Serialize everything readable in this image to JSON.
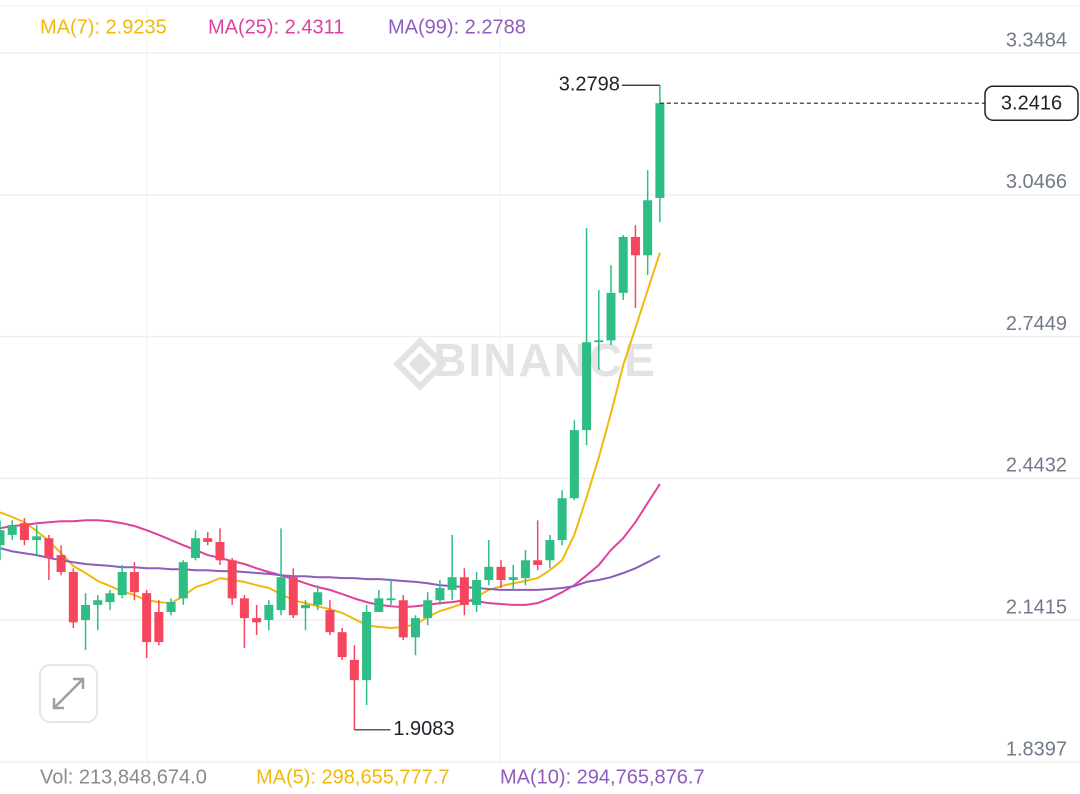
{
  "chart_data": {
    "type": "candlestick",
    "up_color": "#2ebd85",
    "down_color": "#f6465d",
    "ylim": [
      1.83,
      3.46
    ],
    "yticks": [
      3.3484,
      3.0466,
      2.7449,
      2.4432,
      2.1415,
      1.8397
    ],
    "grid": true,
    "watermark": "BINANCE",
    "candles": {
      "open": [
        2.301,
        2.323,
        2.348,
        2.312,
        2.316,
        2.28,
        2.244,
        2.142,
        2.174,
        2.18,
        2.195,
        2.244,
        2.199,
        2.159,
        2.159,
        2.188,
        2.274,
        2.316,
        2.308,
        2.269,
        2.188,
        2.146,
        2.142,
        2.163,
        2.233,
        2.167,
        2.174,
        2.163,
        2.116,
        2.057,
        2.014,
        2.159,
        2.184,
        2.184,
        2.105,
        2.146,
        2.184,
        2.206,
        2.233,
        2.174,
        2.227,
        2.255,
        2.227,
        2.231,
        2.269,
        2.269,
        2.312,
        2.401,
        2.546,
        2.733,
        2.737,
        2.838,
        2.957,
        2.918,
        3.04
      ],
      "high": [
        2.354,
        2.354,
        2.359,
        2.344,
        2.323,
        2.301,
        2.252,
        2.199,
        2.195,
        2.206,
        2.259,
        2.265,
        2.206,
        2.184,
        2.188,
        2.269,
        2.333,
        2.329,
        2.337,
        2.274,
        2.195,
        2.174,
        2.184,
        2.337,
        2.252,
        2.184,
        2.216,
        2.184,
        2.125,
        2.088,
        2.174,
        2.206,
        2.227,
        2.195,
        2.152,
        2.201,
        2.227,
        2.323,
        2.252,
        2.244,
        2.312,
        2.269,
        2.259,
        2.291,
        2.354,
        2.323,
        2.418,
        2.567,
        2.976,
        2.844,
        2.897,
        2.961,
        2.982,
        3.099,
        3.2798
      ],
      "low": [
        2.269,
        2.312,
        2.301,
        2.28,
        2.227,
        2.237,
        2.125,
        2.078,
        2.12,
        2.163,
        2.188,
        2.184,
        2.061,
        2.088,
        2.152,
        2.174,
        2.269,
        2.301,
        2.259,
        2.174,
        2.082,
        2.11,
        2.12,
        2.152,
        2.146,
        2.12,
        2.163,
        2.11,
        2.057,
        1.9083,
        1.961,
        2.159,
        2.174,
        2.099,
        2.067,
        2.131,
        2.174,
        2.184,
        2.152,
        2.159,
        2.216,
        2.21,
        2.206,
        2.216,
        2.248,
        2.252,
        2.301,
        2.397,
        2.514,
        2.674,
        2.727,
        2.823,
        2.806,
        2.876,
        2.988
      ],
      "close": [
        2.333,
        2.344,
        2.312,
        2.32,
        2.274,
        2.244,
        2.137,
        2.174,
        2.184,
        2.199,
        2.244,
        2.201,
        2.095,
        2.095,
        2.18,
        2.265,
        2.316,
        2.308,
        2.269,
        2.188,
        2.146,
        2.137,
        2.174,
        2.233,
        2.152,
        2.174,
        2.201,
        2.116,
        2.063,
        2.014,
        2.159,
        2.188,
        2.188,
        2.105,
        2.146,
        2.184,
        2.21,
        2.233,
        2.174,
        2.227,
        2.255,
        2.227,
        2.233,
        2.269,
        2.259,
        2.312,
        2.401,
        2.546,
        2.733,
        2.737,
        2.838,
        2.957,
        2.918,
        3.035,
        3.2416
      ]
    },
    "series": [
      {
        "name": "MA(7): 2.9235",
        "color": "#f0b90b",
        "values": [
          2.371,
          2.361,
          2.35,
          2.331,
          2.31,
          2.284,
          2.257,
          2.242,
          2.225,
          2.214,
          2.203,
          2.195,
          2.184,
          2.18,
          2.178,
          2.193,
          2.212,
          2.22,
          2.231,
          2.227,
          2.223,
          2.216,
          2.21,
          2.197,
          2.184,
          2.178,
          2.171,
          2.165,
          2.157,
          2.144,
          2.131,
          2.127,
          2.125,
          2.127,
          2.133,
          2.148,
          2.161,
          2.169,
          2.178,
          2.191,
          2.206,
          2.214,
          2.22,
          2.225,
          2.231,
          2.248,
          2.269,
          2.323,
          2.403,
          2.488,
          2.582,
          2.684,
          2.763,
          2.844,
          2.9235
        ]
      },
      {
        "name": "MA(25): 2.4311",
        "color": "#e040a0",
        "values": [
          2.337,
          2.342,
          2.344,
          2.348,
          2.35,
          2.352,
          2.352,
          2.354,
          2.354,
          2.352,
          2.348,
          2.342,
          2.333,
          2.323,
          2.312,
          2.301,
          2.291,
          2.28,
          2.274,
          2.267,
          2.261,
          2.252,
          2.244,
          2.237,
          2.229,
          2.22,
          2.212,
          2.206,
          2.197,
          2.188,
          2.18,
          2.174,
          2.171,
          2.169,
          2.171,
          2.174,
          2.178,
          2.18,
          2.184,
          2.182,
          2.178,
          2.176,
          2.174,
          2.174,
          2.178,
          2.188,
          2.201,
          2.216,
          2.237,
          2.259,
          2.291,
          2.316,
          2.35,
          2.391,
          2.4311
        ]
      },
      {
        "name": "MA(99): 2.2788",
        "color": "#8e5cbf",
        "values": [
          2.295,
          2.288,
          2.284,
          2.28,
          2.274,
          2.269,
          2.265,
          2.261,
          2.259,
          2.257,
          2.254,
          2.254,
          2.252,
          2.252,
          2.25,
          2.25,
          2.248,
          2.248,
          2.246,
          2.246,
          2.244,
          2.242,
          2.24,
          2.237,
          2.235,
          2.235,
          2.233,
          2.233,
          2.231,
          2.231,
          2.229,
          2.229,
          2.227,
          2.225,
          2.223,
          2.22,
          2.216,
          2.214,
          2.212,
          2.21,
          2.208,
          2.206,
          2.206,
          2.206,
          2.206,
          2.208,
          2.21,
          2.214,
          2.223,
          2.227,
          2.233,
          2.242,
          2.252,
          2.265,
          2.2788
        ]
      }
    ],
    "volume_legend": [
      {
        "text": "Vol: 213,848,674.0",
        "color": "#8a8a8a"
      },
      {
        "text": "MA(5): 298,655,777.7",
        "color": "#f0b90b"
      },
      {
        "text": "MA(10): 294,765,876.7",
        "color": "#8e5cbf"
      }
    ]
  }
}
